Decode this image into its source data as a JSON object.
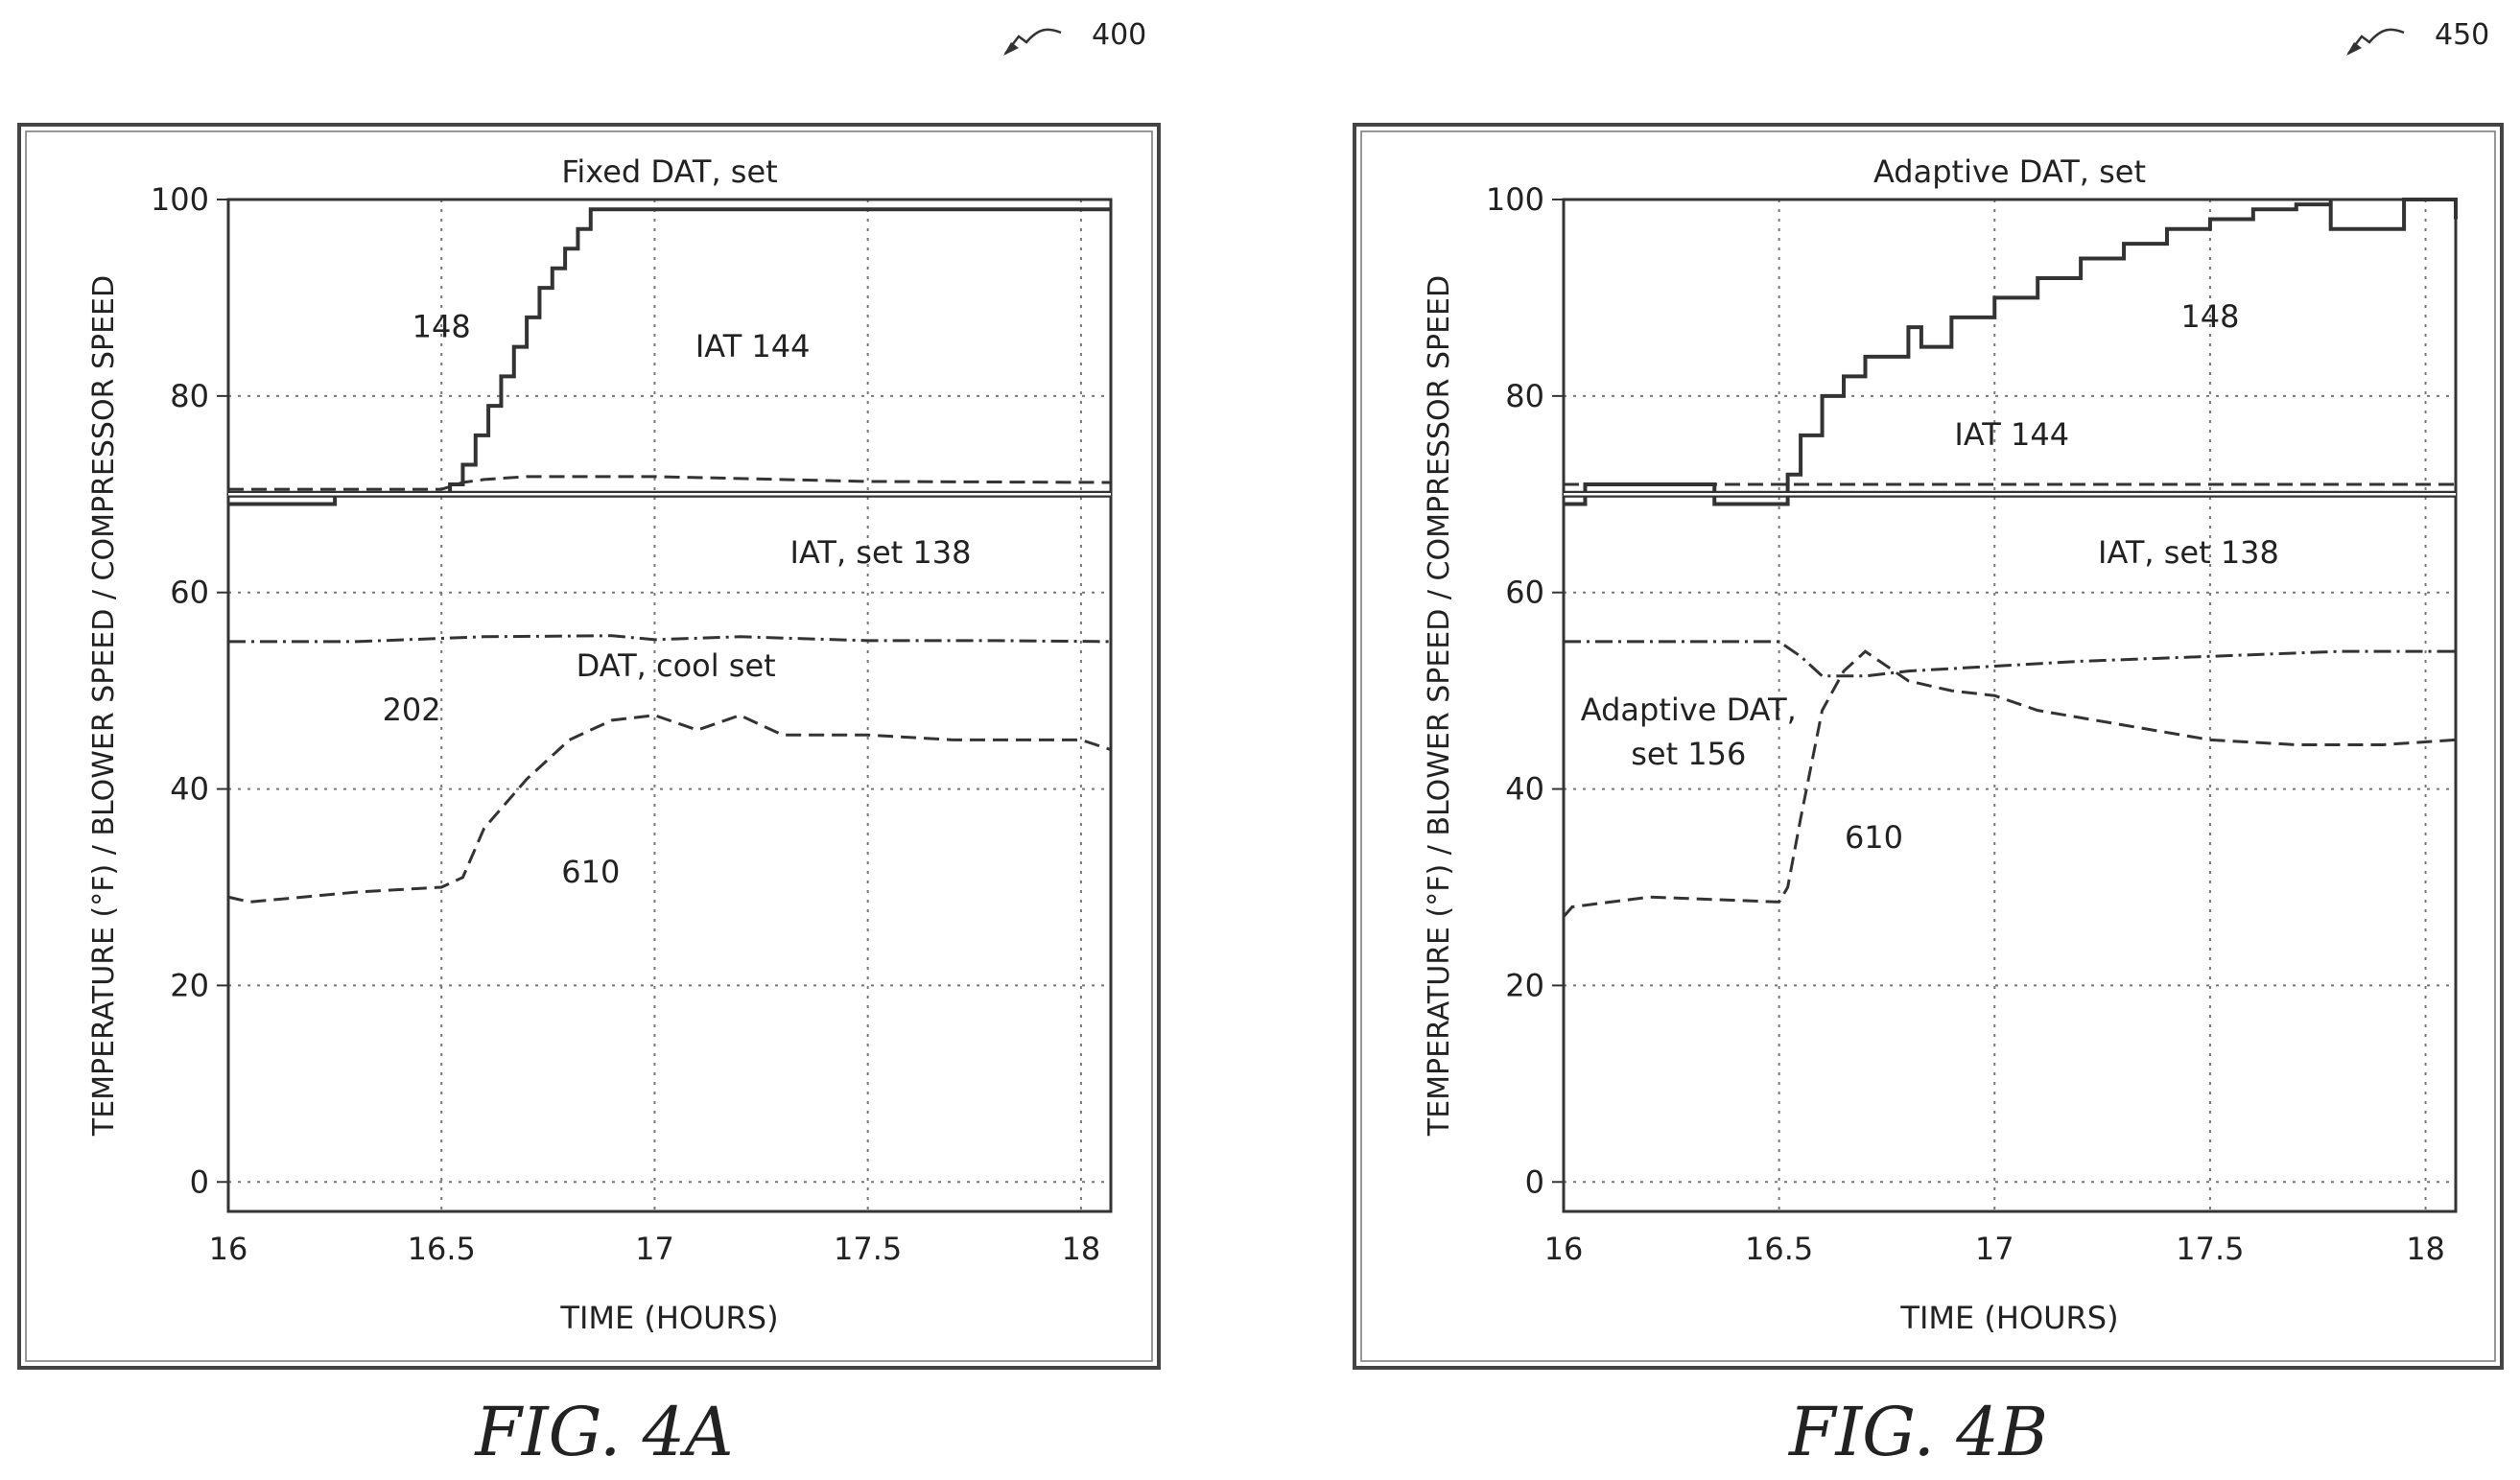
{
  "figures": [
    {
      "ref_number": "400",
      "caption": "FIG. 4A"
    },
    {
      "ref_number": "450",
      "caption": "FIG. 4B"
    }
  ],
  "chart_data": [
    {
      "type": "line",
      "title": "Fixed DAT, set",
      "xlabel": "TIME (HOURS)",
      "ylabel": "TEMPERATURE (°F) / BLOWER SPEED / COMPRESSOR SPEED",
      "xlim": [
        16.0,
        18.07
      ],
      "ylim": [
        -3,
        100
      ],
      "xticks": [
        "16",
        "16.5",
        "17",
        "17.5",
        "18"
      ],
      "yticks": [
        "0",
        "20",
        "40",
        "60",
        "80",
        "100"
      ],
      "grid": true,
      "series": [
        {
          "name": "148",
          "style": "step",
          "x": [
            16.0,
            16.25,
            16.25,
            16.5,
            16.52,
            16.55,
            16.58,
            16.61,
            16.64,
            16.67,
            16.7,
            16.73,
            16.76,
            16.79,
            16.82,
            16.85,
            18.07
          ],
          "y": [
            69,
            69,
            70,
            70,
            71,
            73,
            76,
            79,
            82,
            85,
            88,
            91,
            93,
            95,
            97,
            99,
            99
          ]
        },
        {
          "name": "IAT 144",
          "style": "dashed",
          "x": [
            16.0,
            16.5,
            16.55,
            16.6,
            16.7,
            17.0,
            17.2,
            17.5,
            18.07
          ],
          "y": [
            70.5,
            70.5,
            71.2,
            71.5,
            71.8,
            71.8,
            71.6,
            71.3,
            71.2
          ]
        },
        {
          "name": "IAT, set 138",
          "style": "double",
          "x": [
            16.0,
            18.07
          ],
          "y": [
            70,
            70
          ]
        },
        {
          "name": "DAT, cool set 202",
          "style": "dashdot",
          "x": [
            16.0,
            16.3,
            16.6,
            16.9,
            17.0,
            17.2,
            17.5,
            17.8,
            18.07
          ],
          "y": [
            55,
            55,
            55.5,
            55.6,
            55.2,
            55.5,
            55.1,
            55.1,
            55
          ]
        },
        {
          "name": "610",
          "style": "dashed",
          "x": [
            16.0,
            16.05,
            16.3,
            16.5,
            16.55,
            16.6,
            16.7,
            16.8,
            16.9,
            17.0,
            17.1,
            17.2,
            17.3,
            17.5,
            17.7,
            17.9,
            18.0,
            18.07
          ],
          "y": [
            29,
            28.5,
            29.5,
            30,
            31,
            36,
            41,
            45,
            47,
            47.5,
            46,
            47.5,
            45.5,
            45.5,
            45,
            45,
            45,
            44
          ]
        }
      ],
      "annotations": [
        {
          "label": "148",
          "x": 16.5,
          "y": 86
        },
        {
          "label": "IAT 144",
          "x": 17.23,
          "y": 84
        },
        {
          "label": "IAT, set 138",
          "x": 17.53,
          "y": 63
        },
        {
          "label": "DAT, cool set",
          "x": 17.05,
          "y": 51.5
        },
        {
          "label": "202",
          "x": 16.43,
          "y": 47
        },
        {
          "label": "610",
          "x": 16.85,
          "y": 30.5
        }
      ]
    },
    {
      "type": "line",
      "title": "Adaptive DAT, set",
      "xlabel": "TIME (HOURS)",
      "ylabel": "TEMPERATURE (°F) / BLOWER SPEED / COMPRESSOR SPEED",
      "xlim": [
        16.0,
        18.07
      ],
      "ylim": [
        -3,
        100
      ],
      "xticks": [
        "16",
        "16.5",
        "17",
        "17.5",
        "18"
      ],
      "yticks": [
        "0",
        "20",
        "40",
        "60",
        "80",
        "100"
      ],
      "grid": true,
      "series": [
        {
          "name": "148",
          "style": "step",
          "x": [
            16.0,
            16.05,
            16.05,
            16.32,
            16.35,
            16.5,
            16.52,
            16.55,
            16.6,
            16.65,
            16.7,
            16.8,
            16.83,
            16.9,
            17.0,
            17.1,
            17.2,
            17.3,
            17.4,
            17.5,
            17.6,
            17.7,
            17.78,
            17.78,
            17.95,
            17.95,
            18.07
          ],
          "y": [
            69,
            69,
            71,
            71,
            69,
            69,
            72,
            76,
            80,
            82,
            84,
            87,
            85,
            88,
            90,
            92,
            94,
            95.5,
            97,
            98,
            99,
            99.5,
            100,
            97,
            97,
            100,
            98
          ]
        },
        {
          "name": "IAT 144",
          "style": "dashed",
          "x": [
            16.0,
            18.07
          ],
          "y": [
            71,
            71
          ]
        },
        {
          "name": "IAT, set 138",
          "style": "double",
          "x": [
            16.0,
            18.07
          ],
          "y": [
            70,
            70
          ]
        },
        {
          "name": "Adaptive DAT, set 156",
          "style": "dashdot",
          "x": [
            16.0,
            16.4,
            16.5,
            16.55,
            16.6,
            16.7,
            16.8,
            17.0,
            17.2,
            17.5,
            17.8,
            18.07
          ],
          "y": [
            55,
            55,
            55,
            53.5,
            51.5,
            51.5,
            52,
            52.5,
            53,
            53.5,
            54,
            54
          ]
        },
        {
          "name": "610",
          "style": "dashed",
          "x": [
            16.0,
            16.02,
            16.2,
            16.5,
            16.52,
            16.55,
            16.6,
            16.65,
            16.7,
            16.8,
            16.9,
            17.0,
            17.1,
            17.3,
            17.5,
            17.7,
            17.9,
            18.07
          ],
          "y": [
            27,
            28,
            29,
            28.5,
            30,
            37,
            48,
            52,
            54,
            51,
            50,
            49.5,
            48,
            46.5,
            45,
            44.5,
            44.5,
            45
          ]
        }
      ],
      "annotations": [
        {
          "label": "148",
          "x": 17.5,
          "y": 87
        },
        {
          "label": "IAT 144",
          "x": 17.04,
          "y": 75
        },
        {
          "label": "IAT, set 138",
          "x": 17.45,
          "y": 63
        },
        {
          "label": "Adaptive DAT,",
          "x": 16.29,
          "y": 47
        },
        {
          "label": "set 156",
          "x": 16.29,
          "y": 42.5
        },
        {
          "label": "610",
          "x": 16.72,
          "y": 34
        }
      ]
    }
  ]
}
